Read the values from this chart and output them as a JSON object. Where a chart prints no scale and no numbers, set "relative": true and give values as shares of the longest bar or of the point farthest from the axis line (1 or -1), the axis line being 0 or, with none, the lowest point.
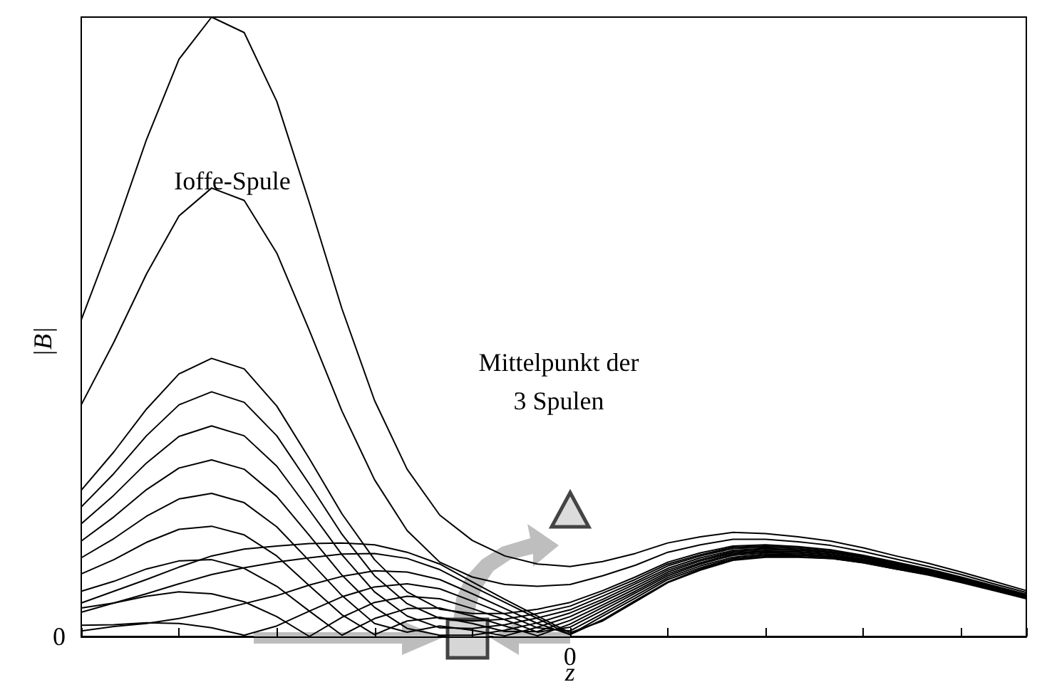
{
  "chart_data": {
    "type": "line",
    "relative": true,
    "xlabel": "z",
    "ylabel": "|B|",
    "annotations": [
      "Ioffe-Spule",
      "Mittelpunkt der\n3 Spulen",
      "0",
      "0"
    ],
    "categories": [
      null,
      null,
      null,
      null,
      null,
      null,
      null,
      null,
      null,
      null,
      null,
      null,
      null,
      null,
      null,
      null,
      null,
      null,
      null,
      null,
      null,
      null,
      null,
      null,
      null,
      null,
      null,
      null,
      null,
      null
    ],
    "marker": "none",
    "line_style": "solid",
    "grid": false,
    "series": [
      {
        "color": "#000000",
        "values": [
          0.511,
          0.65,
          0.802,
          0.932,
          1.0,
          0.975,
          0.864,
          0.7,
          0.529,
          0.381,
          0.27,
          0.196,
          0.155,
          0.13,
          0.117,
          0.113,
          0.121,
          0.134,
          0.151,
          0.161,
          0.168,
          0.166,
          0.161,
          0.154,
          0.143,
          0.13,
          0.118,
          0.104,
          0.089,
          0.074
        ]
      },
      {
        "color": "#000000",
        "values": [
          0.374,
          0.475,
          0.585,
          0.679,
          0.724,
          0.704,
          0.619,
          0.494,
          0.364,
          0.253,
          0.171,
          0.12,
          0.096,
          0.084,
          0.081,
          0.084,
          0.098,
          0.115,
          0.136,
          0.148,
          0.157,
          0.157,
          0.153,
          0.147,
          0.137,
          0.125,
          0.113,
          0.1,
          0.085,
          0.071
        ]
      },
      {
        "color": "#000000",
        "values": [
          0.236,
          0.298,
          0.367,
          0.424,
          0.449,
          0.432,
          0.372,
          0.287,
          0.198,
          0.124,
          0.072,
          0.044,
          0.037,
          0.037,
          0.044,
          0.055,
          0.074,
          0.096,
          0.12,
          0.135,
          0.146,
          0.148,
          0.145,
          0.14,
          0.131,
          0.12,
          0.109,
          0.096,
          0.082,
          0.068
        ]
      },
      {
        "color": "#000000",
        "values": [
          0.209,
          0.263,
          0.324,
          0.374,
          0.395,
          0.378,
          0.324,
          0.246,
          0.165,
          0.098,
          0.053,
          0.029,
          0.025,
          0.028,
          0.037,
          0.049,
          0.07,
          0.092,
          0.117,
          0.132,
          0.144,
          0.146,
          0.144,
          0.139,
          0.13,
          0.119,
          0.108,
          0.095,
          0.081,
          0.067
        ]
      },
      {
        "color": "#000000",
        "values": [
          0.182,
          0.228,
          0.28,
          0.323,
          0.34,
          0.324,
          0.275,
          0.204,
          0.132,
          0.072,
          0.033,
          0.014,
          0.013,
          0.019,
          0.03,
          0.043,
          0.065,
          0.088,
          0.114,
          0.13,
          0.142,
          0.144,
          0.142,
          0.137,
          0.129,
          0.118,
          0.107,
          0.094,
          0.08,
          0.067
        ]
      },
      {
        "color": "#000000",
        "values": [
          0.154,
          0.193,
          0.237,
          0.272,
          0.285,
          0.27,
          0.226,
          0.163,
          0.099,
          0.047,
          0.013,
          0.002,
          0.002,
          0.01,
          0.022,
          0.038,
          0.06,
          0.085,
          0.11,
          0.127,
          0.139,
          0.142,
          0.14,
          0.136,
          0.128,
          0.117,
          0.106,
          0.093,
          0.08,
          0.066
        ]
      },
      {
        "color": "#000000",
        "values": [
          0.127,
          0.158,
          0.194,
          0.222,
          0.231,
          0.216,
          0.177,
          0.122,
          0.066,
          0.021,
          0.007,
          0.017,
          0.01,
          0.001,
          0.015,
          0.032,
          0.056,
          0.081,
          0.107,
          0.124,
          0.137,
          0.14,
          0.139,
          0.135,
          0.127,
          0.116,
          0.105,
          0.092,
          0.079,
          0.065
        ]
      },
      {
        "color": "#000000",
        "values": [
          0.101,
          0.124,
          0.152,
          0.173,
          0.178,
          0.164,
          0.13,
          0.082,
          0.035,
          0.003,
          0.025,
          0.031,
          0.021,
          0.008,
          0.008,
          0.026,
          0.051,
          0.077,
          0.104,
          0.122,
          0.135,
          0.138,
          0.137,
          0.133,
          0.125,
          0.115,
          0.104,
          0.092,
          0.078,
          0.065
        ]
      },
      {
        "color": "#000000",
        "values": [
          0.073,
          0.089,
          0.109,
          0.122,
          0.124,
          0.11,
          0.081,
          0.041,
          0.002,
          0.029,
          0.045,
          0.046,
          0.033,
          0.017,
          0.001,
          0.02,
          0.047,
          0.073,
          0.101,
          0.119,
          0.133,
          0.137,
          0.136,
          0.132,
          0.124,
          0.114,
          0.103,
          0.091,
          0.077,
          0.064
        ]
      },
      {
        "color": "#000000",
        "values": [
          0.046,
          0.054,
          0.065,
          0.072,
          0.069,
          0.056,
          0.032,
          0.0,
          0.031,
          0.055,
          0.065,
          0.061,
          0.045,
          0.027,
          0.007,
          0.015,
          0.042,
          0.07,
          0.098,
          0.117,
          0.131,
          0.135,
          0.134,
          0.13,
          0.123,
          0.113,
          0.102,
          0.09,
          0.077,
          0.064
        ]
      },
      {
        "color": "#000000",
        "values": [
          0.018,
          0.019,
          0.022,
          0.021,
          0.014,
          0.002,
          0.017,
          0.041,
          0.064,
          0.08,
          0.085,
          0.077,
          0.057,
          0.036,
          0.014,
          0.009,
          0.037,
          0.066,
          0.095,
          0.114,
          0.128,
          0.133,
          0.132,
          0.129,
          0.122,
          0.112,
          0.101,
          0.089,
          0.076,
          0.063
        ]
      },
      {
        "color": "#000000",
        "values": [
          0.009,
          0.016,
          0.021,
          0.029,
          0.04,
          0.053,
          0.066,
          0.083,
          0.097,
          0.106,
          0.104,
          0.092,
          0.069,
          0.045,
          0.021,
          0.003,
          0.033,
          0.062,
          0.092,
          0.111,
          0.126,
          0.131,
          0.131,
          0.128,
          0.121,
          0.111,
          0.1,
          0.088,
          0.075,
          0.062
        ]
      },
      {
        "color": "#000000",
        "values": [
          0.039,
          0.054,
          0.069,
          0.085,
          0.1,
          0.111,
          0.12,
          0.127,
          0.133,
          0.134,
          0.126,
          0.108,
          0.081,
          0.055,
          0.029,
          0.003,
          0.027,
          0.058,
          0.088,
          0.109,
          0.124,
          0.129,
          0.129,
          0.126,
          0.119,
          0.109,
          0.1,
          0.088,
          0.075,
          0.062
        ]
      },
      {
        "color": "#000000",
        "values": [
          0.054,
          0.073,
          0.092,
          0.112,
          0.13,
          0.141,
          0.146,
          0.15,
          0.151,
          0.148,
          0.136,
          0.117,
          0.088,
          0.06,
          0.033,
          0.006,
          0.025,
          0.056,
          0.087,
          0.107,
          0.123,
          0.128,
          0.128,
          0.126,
          0.119,
          0.109,
          0.099,
          0.087,
          0.074,
          0.061
        ]
      }
    ]
  }
}
